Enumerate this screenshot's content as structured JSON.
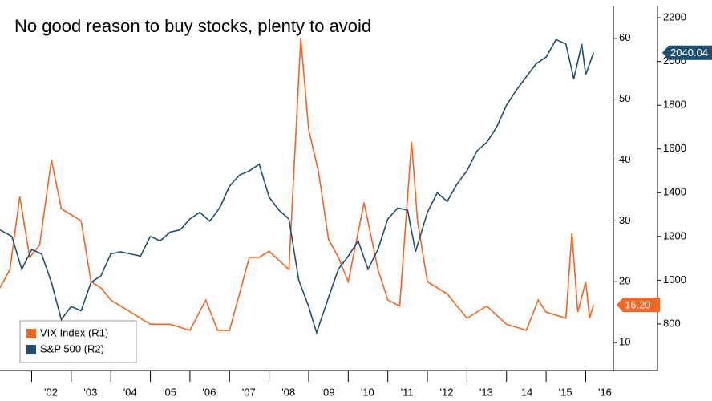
{
  "chart_data": {
    "type": "line",
    "title": "No good reason to buy stocks, plenty to avoid",
    "xlim": [
      2001.2,
      2016.7
    ],
    "xticks": [
      {
        "value": 2002,
        "label": "'02"
      },
      {
        "value": 2003,
        "label": "'03"
      },
      {
        "value": 2004,
        "label": "'04"
      },
      {
        "value": 2005,
        "label": "'05"
      },
      {
        "value": 2006,
        "label": "'06"
      },
      {
        "value": 2007,
        "label": "'07"
      },
      {
        "value": 2008,
        "label": "'08"
      },
      {
        "value": 2009,
        "label": "'09"
      },
      {
        "value": 2010,
        "label": "'10"
      },
      {
        "value": 2011,
        "label": "'11"
      },
      {
        "value": 2012,
        "label": "'12"
      },
      {
        "value": 2013,
        "label": "'13"
      },
      {
        "value": 2014,
        "label": "'14"
      },
      {
        "value": 2015,
        "label": "'15"
      },
      {
        "value": 2016,
        "label": "'16"
      }
    ],
    "ylim": [
      5.4,
      66.3
    ],
    "yticks": [
      10,
      20,
      30,
      40,
      50,
      60
    ],
    "y2lim": [
      587,
      2281
    ],
    "y2ticks": [
      800,
      1000,
      1200,
      1400,
      1600,
      1800,
      2000,
      2200
    ],
    "series": [
      {
        "name": "VIX Index (R1)",
        "color": "#f26522",
        "axis": "y",
        "x": [
          2001.2,
          2001.45,
          2001.7,
          2001.95,
          2002.2,
          2002.5,
          2002.75,
          2003.0,
          2003.25,
          2003.5,
          2003.75,
          2004.0,
          2004.25,
          2004.5,
          2004.75,
          2005.0,
          2005.5,
          2006.0,
          2006.4,
          2006.7,
          2007.0,
          2007.5,
          2007.75,
          2008.0,
          2008.5,
          2008.8,
          2009.0,
          2009.25,
          2009.5,
          2009.75,
          2010.0,
          2010.4,
          2010.75,
          2011.0,
          2011.3,
          2011.6,
          2011.75,
          2012.0,
          2012.5,
          2013.0,
          2013.5,
          2014.0,
          2014.5,
          2014.8,
          2015.0,
          2015.5,
          2015.65,
          2015.8,
          2016.0,
          2016.1,
          2016.2
        ],
        "values": [
          19,
          22,
          34,
          24,
          26,
          40,
          32,
          31,
          30,
          20,
          19,
          17,
          16,
          15,
          14,
          13,
          13,
          12,
          17,
          12,
          12,
          24,
          24,
          25,
          22,
          60,
          45,
          38,
          27,
          24,
          20,
          33,
          22,
          17,
          16,
          43,
          30,
          20,
          18,
          14,
          16,
          13,
          12,
          17,
          15,
          14,
          28,
          15,
          20,
          14,
          16.2
        ],
        "value_labels": {
          "last": "16.20"
        }
      },
      {
        "name": "S&P 500 (R2)",
        "color": "#1f4e6e",
        "axis": "y2",
        "x": [
          2001.2,
          2001.5,
          2001.75,
          2002.0,
          2002.25,
          2002.5,
          2002.75,
          2003.0,
          2003.25,
          2003.5,
          2003.75,
          2004.0,
          2004.25,
          2004.5,
          2004.75,
          2005.0,
          2005.25,
          2005.5,
          2005.75,
          2006.0,
          2006.25,
          2006.5,
          2006.75,
          2007.0,
          2007.25,
          2007.5,
          2007.75,
          2008.0,
          2008.25,
          2008.5,
          2008.75,
          2009.0,
          2009.2,
          2009.5,
          2009.75,
          2010.0,
          2010.25,
          2010.5,
          2010.75,
          2011.0,
          2011.25,
          2011.5,
          2011.7,
          2012.0,
          2012.25,
          2012.5,
          2012.75,
          2013.0,
          2013.25,
          2013.5,
          2013.75,
          2014.0,
          2014.25,
          2014.5,
          2014.75,
          2015.0,
          2015.25,
          2015.5,
          2015.7,
          2015.9,
          2016.0,
          2016.2
        ],
        "values": [
          1230,
          1200,
          1050,
          1140,
          1120,
          990,
          820,
          880,
          860,
          990,
          1020,
          1120,
          1130,
          1120,
          1110,
          1200,
          1180,
          1220,
          1230,
          1280,
          1310,
          1270,
          1330,
          1430,
          1480,
          1500,
          1530,
          1380,
          1320,
          1280,
          1000,
          880,
          760,
          920,
          1050,
          1110,
          1180,
          1050,
          1140,
          1280,
          1330,
          1320,
          1130,
          1310,
          1400,
          1360,
          1440,
          1500,
          1590,
          1630,
          1700,
          1800,
          1870,
          1930,
          1990,
          2020,
          2100,
          2080,
          1920,
          2080,
          1940,
          2040.04
        ],
        "value_labels": {
          "last": "2040.04"
        }
      }
    ]
  }
}
